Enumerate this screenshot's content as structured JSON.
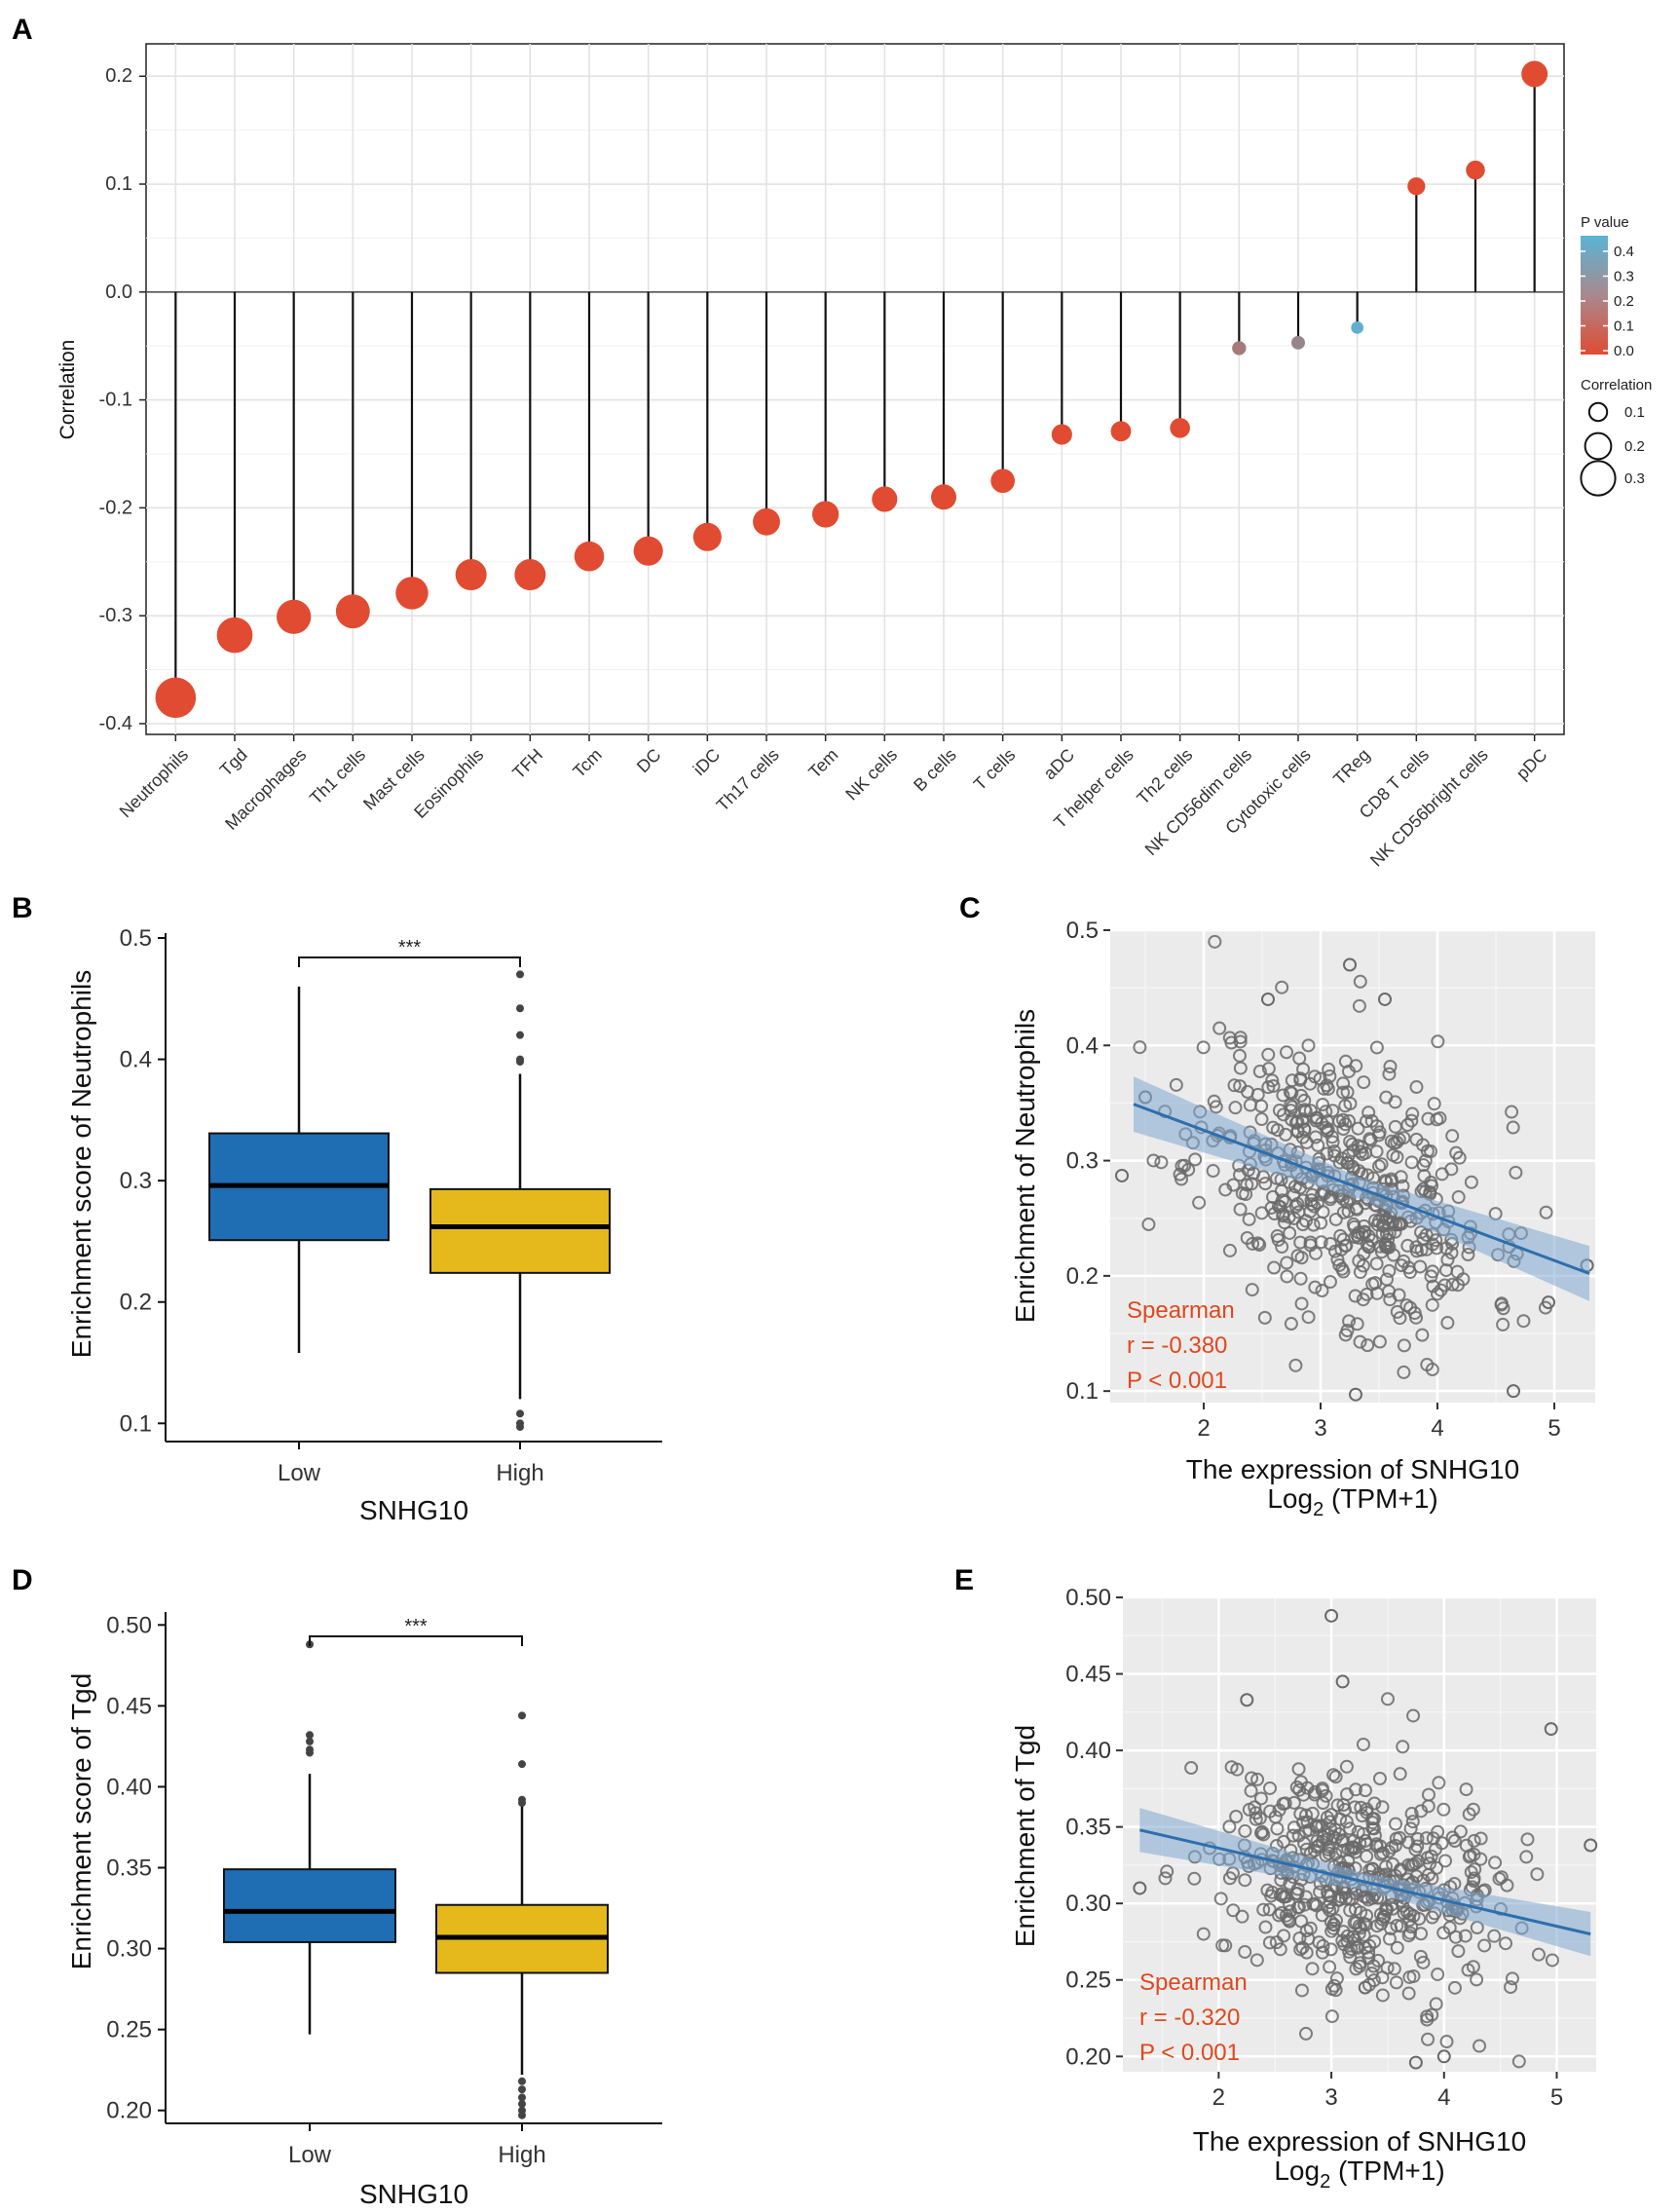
{
  "panels": {
    "a": "A",
    "b": "B",
    "c": "C",
    "d": "D",
    "e": "E"
  },
  "colors": {
    "p_low": "#e04b32",
    "p_high": "#5ab4d6",
    "box_low": "#1f6db3",
    "box_high": "#e5b91c",
    "regression": "#2c6fae",
    "annotation": "#e0481e"
  },
  "chart_data": [
    {
      "type": "scatter",
      "panel": "A",
      "title": "",
      "ylabel": "Correlation",
      "xlabel": "",
      "ylim": [
        -0.41,
        0.23
      ],
      "yticks": [
        0.2,
        0.1,
        0.0,
        -0.1,
        -0.2,
        -0.3,
        -0.4
      ],
      "ytick_labels": [
        "0.2",
        "0.1",
        "0.0",
        "-0.1",
        "-0.2",
        "-0.3",
        "-0.4"
      ],
      "categories": [
        "Neutrophils",
        "Tgd",
        "Macrophages",
        "Th1 cells",
        "Mast cells",
        "Eosinophils",
        "TFH",
        "Tcm",
        "DC",
        "iDC",
        "Th17 cells",
        "Tem",
        "NK cells",
        "B cells",
        "T cells",
        "aDC",
        "T helper cells",
        "Th2 cells",
        "NK CD56dim cells",
        "Cytotoxic cells",
        "TReg",
        "CD8 T cells",
        "NK CD56bright cells",
        "pDC"
      ],
      "values": [
        -0.376,
        -0.318,
        -0.301,
        -0.296,
        -0.279,
        -0.262,
        -0.262,
        -0.245,
        -0.24,
        -0.227,
        -0.213,
        -0.206,
        -0.192,
        -0.19,
        -0.175,
        -0.132,
        -0.129,
        -0.126,
        -0.052,
        -0.047,
        -0.033,
        0.098,
        0.113,
        0.202
      ],
      "pvalues": [
        0.0,
        0.0,
        0.0,
        0.0,
        0.0,
        0.0,
        0.0,
        0.0,
        0.0,
        0.0,
        0.0,
        0.0,
        0.0,
        0.0,
        0.0,
        0.0,
        0.0,
        0.0,
        0.2,
        0.25,
        0.43,
        0.0,
        0.0,
        0.0
      ],
      "legend": {
        "pvalue_title": "P value",
        "pvalue_ticks": [
          "0.4",
          "0.3",
          "0.2",
          "0.1",
          "0.0"
        ],
        "size_title": "Correlation",
        "size_ticks": [
          "0.1",
          "0.2",
          "0.3"
        ],
        "position": "right"
      }
    },
    {
      "type": "box",
      "panel": "B",
      "ylabel": "Enrichment score of Neutrophils",
      "xlabel": "SNHG10",
      "categories": [
        "Low",
        "High"
      ],
      "ylim": [
        0.085,
        0.5
      ],
      "yticks": [
        0.1,
        0.2,
        0.3,
        0.4,
        0.5
      ],
      "ytick_labels": [
        "0.1",
        "0.2",
        "0.3",
        "0.4",
        "0.5"
      ],
      "boxes": [
        {
          "name": "Low",
          "min": 0.158,
          "q1": 0.251,
          "median": 0.296,
          "q3": 0.339,
          "max": 0.46,
          "outliers": []
        },
        {
          "name": "High",
          "min": 0.12,
          "q1": 0.224,
          "median": 0.262,
          "q3": 0.293,
          "max": 0.388,
          "outliers": [
            0.47,
            0.442,
            0.42,
            0.4,
            0.398,
            0.108,
            0.1,
            0.097
          ]
        }
      ],
      "significance": "***"
    },
    {
      "type": "scatter",
      "panel": "C",
      "ylabel": "Enrichment of Neutrophils",
      "xlabel": "The expression of SNHG10",
      "xlabel2_pre": "Log",
      "xlabel2_sub": "2",
      "xlabel2_post": " (TPM+1)",
      "xlim": [
        1.2,
        5.35
      ],
      "ylim": [
        0.09,
        0.5
      ],
      "xticks": [
        2,
        3,
        4,
        5
      ],
      "xtick_labels": [
        "2",
        "3",
        "4",
        "5"
      ],
      "yticks": [
        0.1,
        0.2,
        0.3,
        0.4,
        0.5
      ],
      "ytick_labels": [
        "0.1",
        "0.2",
        "0.3",
        "0.4",
        "0.5"
      ],
      "regression": {
        "x": [
          1.4,
          5.3
        ],
        "y": [
          0.349,
          0.202
        ],
        "band": 0.015
      },
      "stats": {
        "method": "Spearman",
        "r": "r = -0.380",
        "p": "P < 0.001"
      },
      "seed": 11,
      "n_points": 520,
      "x_center": 3.2,
      "x_spread": 0.62,
      "y_spread": 0.058,
      "highlighted_points": [
        [
          1.3,
          0.287
        ],
        [
          1.5,
          0.355
        ],
        [
          5.28,
          0.209
        ],
        [
          4.95,
          0.177
        ],
        [
          4.65,
          0.1
        ],
        [
          3.25,
          0.47
        ],
        [
          3.3,
          0.097
        ],
        [
          3.55,
          0.44
        ],
        [
          2.55,
          0.44
        ]
      ]
    },
    {
      "type": "box",
      "panel": "D",
      "ylabel": "Enrichment score of Tgd",
      "xlabel": "SNHG10",
      "categories": [
        "Low",
        "High"
      ],
      "ylim": [
        0.192,
        0.505
      ],
      "yticks": [
        0.2,
        0.25,
        0.3,
        0.35,
        0.4,
        0.45,
        0.5
      ],
      "ytick_labels": [
        "0.20",
        "0.25",
        "0.30",
        "0.35",
        "0.40",
        "0.45",
        "0.50"
      ],
      "boxes": [
        {
          "name": "Low",
          "min": 0.247,
          "q1": 0.304,
          "median": 0.323,
          "q3": 0.349,
          "max": 0.408,
          "outliers": [
            0.488,
            0.432,
            0.428,
            0.423,
            0.421
          ]
        },
        {
          "name": "High",
          "min": 0.222,
          "q1": 0.285,
          "median": 0.307,
          "q3": 0.327,
          "max": 0.388,
          "outliers": [
            0.444,
            0.414,
            0.392,
            0.39,
            0.218,
            0.213,
            0.208,
            0.204,
            0.2,
            0.197
          ]
        }
      ],
      "significance": "***"
    },
    {
      "type": "scatter",
      "panel": "E",
      "ylabel": "Enrichment of Tgd",
      "xlabel": "The expression of SNHG10",
      "xlabel2_pre": "Log",
      "xlabel2_sub": "2",
      "xlabel2_post": " (TPM+1)",
      "xlim": [
        1.15,
        5.35
      ],
      "ylim": [
        0.19,
        0.5
      ],
      "xticks": [
        2,
        3,
        4,
        5
      ],
      "xtick_labels": [
        "2",
        "3",
        "4",
        "5"
      ],
      "yticks": [
        0.2,
        0.25,
        0.3,
        0.35,
        0.4,
        0.45,
        0.5
      ],
      "ytick_labels": [
        "0.20",
        "0.25",
        "0.30",
        "0.35",
        "0.40",
        "0.45",
        "0.50"
      ],
      "regression": {
        "x": [
          1.3,
          5.3
        ],
        "y": [
          0.348,
          0.28
        ],
        "band": 0.009
      },
      "stats": {
        "method": "Spearman",
        "r": "r = -0.320",
        "p": "P < 0.001"
      },
      "seed": 29,
      "n_points": 520,
      "x_center": 3.2,
      "x_spread": 0.62,
      "y_spread": 0.036,
      "highlighted_points": [
        [
          3.0,
          0.488
        ],
        [
          3.1,
          0.445
        ],
        [
          2.25,
          0.433
        ],
        [
          4.95,
          0.414
        ],
        [
          5.3,
          0.338
        ],
        [
          1.3,
          0.31
        ],
        [
          3.75,
          0.196
        ],
        [
          4.0,
          0.2
        ],
        [
          3.3,
          0.245
        ]
      ]
    }
  ]
}
